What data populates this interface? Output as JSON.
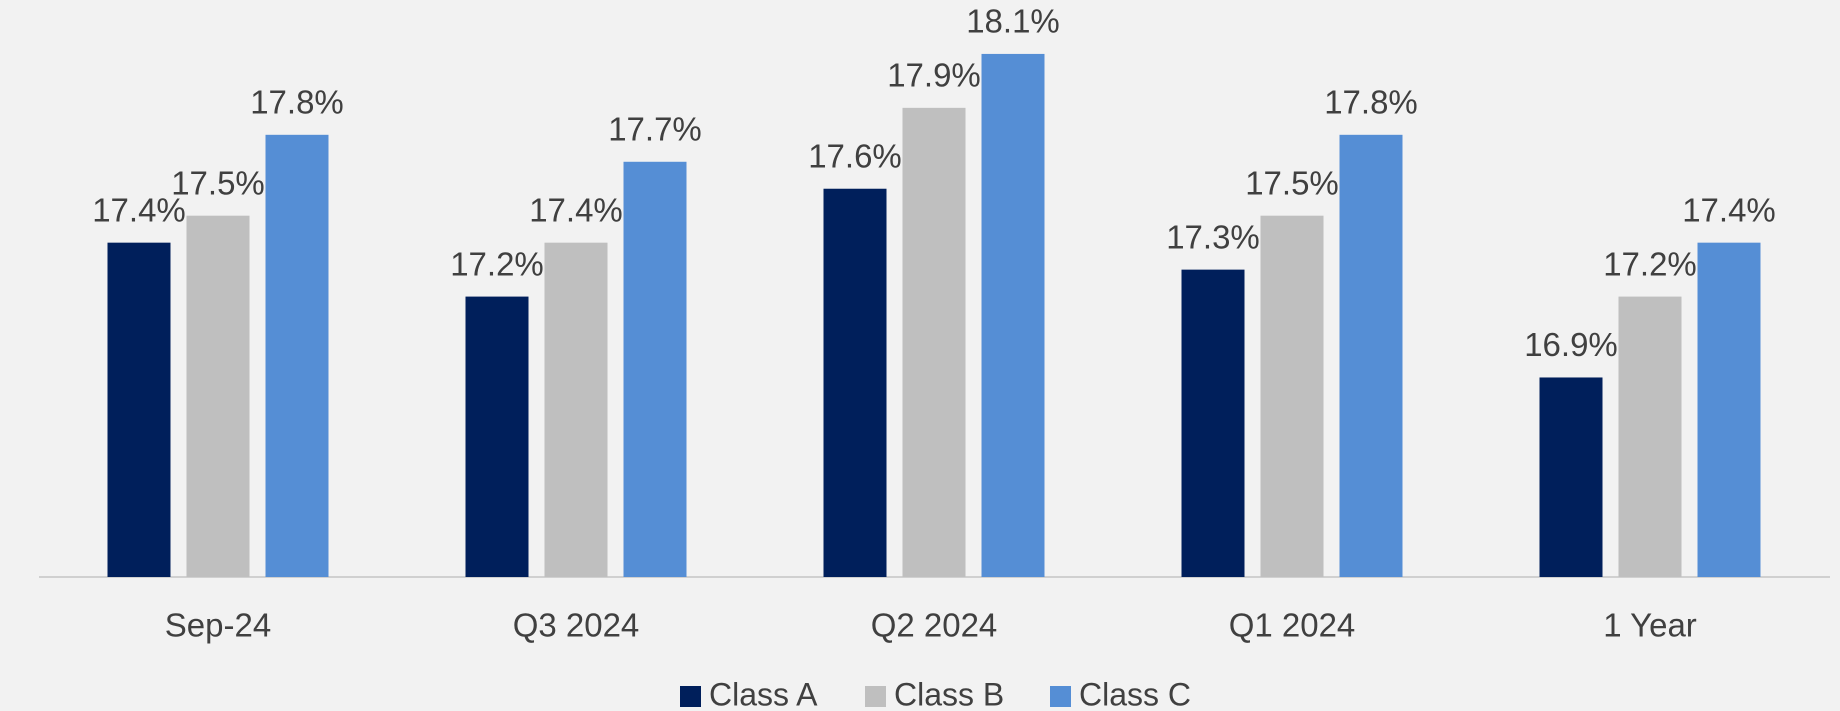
{
  "chart_data": {
    "type": "bar",
    "categories": [
      "Sep-24",
      "Q3 2024",
      "Q2 2024",
      "Q1 2024",
      "1 Year"
    ],
    "series": [
      {
        "name": "Class A",
        "color": "#001f5b",
        "values": [
          17.4,
          17.2,
          17.6,
          17.3,
          16.9
        ],
        "value_labels": [
          "17.4%",
          "17.2%",
          "17.6%",
          "17.3%",
          "16.9%"
        ]
      },
      {
        "name": "Class B",
        "color": "#bfbfbf",
        "values": [
          17.5,
          17.4,
          17.9,
          17.5,
          17.2
        ],
        "value_labels": [
          "17.5%",
          "17.4%",
          "17.9%",
          "17.5%",
          "17.2%"
        ]
      },
      {
        "name": "Class C",
        "color": "#558ed5",
        "values": [
          17.8,
          17.7,
          18.1,
          17.8,
          17.4
        ],
        "value_labels": [
          "17.8%",
          "17.7%",
          "18.1%",
          "17.8%",
          "17.4%"
        ]
      }
    ],
    "ylim": [
      16.16,
      18.3
    ],
    "legend": "bottom"
  }
}
